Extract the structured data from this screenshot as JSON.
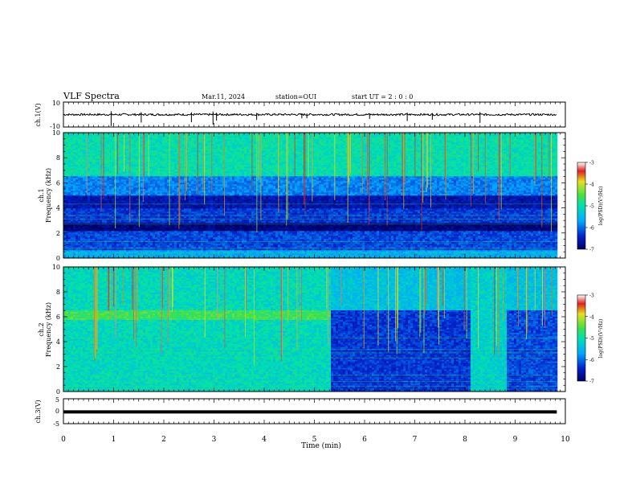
{
  "header": {
    "title": "VLF Spectra",
    "date": "Mar.11, 2024",
    "station": "station=OUI",
    "start": "start  UT =  2 : 0  : 0"
  },
  "colors": {
    "deep_blue": "#000a7a",
    "blue": "#0a2fd6",
    "cyan": "#12c6e6",
    "green": "#22d17a",
    "yellow": "#e6e01c",
    "red": "#d11f1f"
  },
  "chart_data": [
    {
      "id": "ch1-waveform",
      "type": "line",
      "ylabel": "ch.1(V)",
      "ylim": [
        -10,
        10
      ],
      "ytick_labels": [
        "10",
        "-10"
      ],
      "series": [
        {
          "x": [
            0,
            10
          ],
          "y": [
            0,
            0
          ]
        }
      ],
      "annotations": "noisy trace near 0 V with sparse negative spikes"
    },
    {
      "id": "ch1-spectrogram",
      "type": "heatmap",
      "ylabel": "ch.1\nFrequency (kHz)",
      "ylim": [
        0,
        10
      ],
      "ytick_labels": [
        "0",
        "2",
        "4",
        "6",
        "8",
        "10"
      ],
      "xlim": [
        0,
        9.83
      ],
      "colorbar": {
        "label": "log(PSD)(V²/Hz)",
        "range": [
          -7,
          -3
        ],
        "tick_labels": [
          "-3",
          "-4",
          "-5",
          "-6",
          "-7"
        ]
      },
      "bands": [
        {
          "from": 0,
          "to": 0.6,
          "value": -5.6
        },
        {
          "from": 0.6,
          "to": 2.2,
          "value": -6.2
        },
        {
          "from": 2.2,
          "to": 2.8,
          "value": -6.9
        },
        {
          "from": 2.8,
          "to": 4.0,
          "value": -6.3
        },
        {
          "from": 4.0,
          "to": 5.0,
          "value": -6.6
        },
        {
          "from": 5.0,
          "to": 6.5,
          "value": -5.9
        },
        {
          "from": 6.5,
          "to": 10,
          "value": -5.0
        }
      ]
    },
    {
      "id": "ch2-spectrogram",
      "type": "heatmap",
      "ylabel": "ch.2\nFrequency (kHz)",
      "ylim": [
        0,
        10
      ],
      "ytick_labels": [
        "0",
        "2",
        "4",
        "6",
        "8",
        "10"
      ],
      "xlim": [
        0,
        9.83
      ],
      "colorbar": {
        "label": "log(PSD)(V²/Hz)",
        "range": [
          -7,
          -3
        ],
        "tick_labels": [
          "-3",
          "-4",
          "-5",
          "-6",
          "-7"
        ]
      },
      "segments": [
        {
          "t_from": 0,
          "t_to": 5.3,
          "value": -5.1
        },
        {
          "t_from": 5.3,
          "t_to": 8.1,
          "value": -6.3
        },
        {
          "t_from": 8.1,
          "t_to": 8.8,
          "value": -5.2
        },
        {
          "t_from": 8.8,
          "t_to": 9.83,
          "value": -6.2
        }
      ]
    },
    {
      "id": "ch3-waveform",
      "type": "line",
      "ylabel": "ch.3(V)",
      "ylim": [
        -5,
        5
      ],
      "ytick_labels": [
        "5",
        "0",
        "-5"
      ],
      "series": [
        {
          "x": [
            0,
            9.83
          ],
          "y": [
            -0.3,
            -0.3
          ]
        }
      ]
    }
  ],
  "xaxis": {
    "label": "Time (min)",
    "range": [
      0,
      10
    ],
    "tick_labels": [
      "0",
      "1",
      "2",
      "3",
      "4",
      "5",
      "6",
      "7",
      "8",
      "9",
      "10"
    ]
  }
}
